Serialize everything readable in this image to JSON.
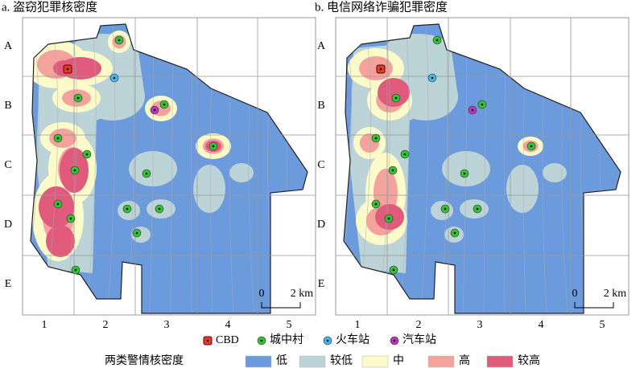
{
  "panels": [
    {
      "title": "a. 盗窃犯罪核密度",
      "rows": [
        "A",
        "B",
        "C",
        "D",
        "E"
      ],
      "columns": [
        "1",
        "2",
        "3",
        "4",
        "5"
      ],
      "scale": {
        "start": "0",
        "end": "2 km"
      }
    },
    {
      "title": "b. 电信网络诈骗犯罪密度",
      "rows": [
        "A",
        "B",
        "C",
        "D",
        "E"
      ],
      "columns": [
        "1",
        "2",
        "3",
        "4",
        "5"
      ],
      "scale": {
        "start": "0",
        "end": "2 km"
      }
    }
  ],
  "legend": {
    "symbols": [
      "CBD",
      "城中村",
      "火车站",
      "汽车站"
    ],
    "density_title": "两类警情核密度",
    "density_classes": [
      "低",
      "较低",
      "中",
      "高",
      "较高"
    ]
  }
}
